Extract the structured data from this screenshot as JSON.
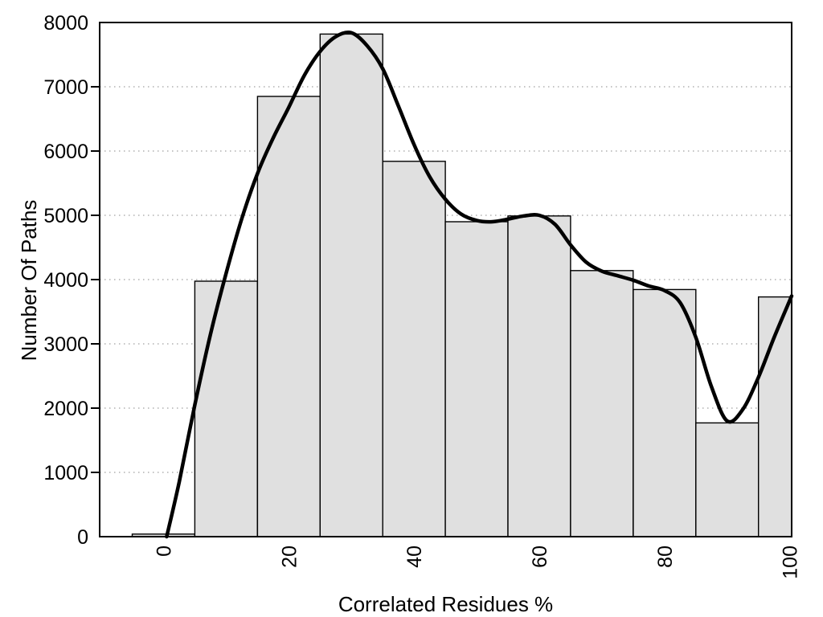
{
  "chart_data": {
    "type": "bar",
    "subtype": "histogram_with_smooth_curve",
    "title": "",
    "xlabel": "Correlated Residues %",
    "ylabel": "Number Of Paths",
    "xlim": [
      -10.2,
      100.3
    ],
    "ylim": [
      0,
      8000
    ],
    "x_ticks": [
      0,
      20,
      40,
      60,
      80,
      100
    ],
    "y_ticks": [
      0,
      1000,
      2000,
      3000,
      4000,
      5000,
      6000,
      7000,
      8000
    ],
    "grid_y": [
      1000,
      2000,
      3000,
      4000,
      5000,
      6000,
      7000
    ],
    "x_tick_rotation_deg": -90,
    "grid": "horizontal-dotted",
    "legend_position": "none",
    "bars": {
      "bin_width": 10,
      "centers": [
        0,
        10,
        20,
        30,
        40,
        50,
        60,
        70,
        80,
        90,
        100
      ],
      "values": [
        40,
        3975,
        6850,
        7820,
        5840,
        4900,
        4990,
        4140,
        3845,
        1770,
        3730
      ]
    },
    "smooth_curve": [
      [
        0.5,
        0
      ],
      [
        2.5,
        850
      ],
      [
        5,
        2050
      ],
      [
        7.5,
        3150
      ],
      [
        10,
        4100
      ],
      [
        12.5,
        4950
      ],
      [
        15,
        5650
      ],
      [
        17.5,
        6200
      ],
      [
        20,
        6680
      ],
      [
        22.5,
        7180
      ],
      [
        25,
        7550
      ],
      [
        27.5,
        7780
      ],
      [
        30,
        7840
      ],
      [
        32.5,
        7640
      ],
      [
        35,
        7280
      ],
      [
        37.5,
        6700
      ],
      [
        40,
        6100
      ],
      [
        42.5,
        5600
      ],
      [
        45,
        5250
      ],
      [
        47.5,
        5020
      ],
      [
        50,
        4920
      ],
      [
        52.5,
        4900
      ],
      [
        55,
        4940
      ],
      [
        57.5,
        4990
      ],
      [
        60,
        5000
      ],
      [
        62.5,
        4860
      ],
      [
        65,
        4540
      ],
      [
        67.5,
        4270
      ],
      [
        70,
        4130
      ],
      [
        72.5,
        4060
      ],
      [
        75,
        3990
      ],
      [
        77.5,
        3900
      ],
      [
        80,
        3830
      ],
      [
        82.5,
        3640
      ],
      [
        85,
        3100
      ],
      [
        87.5,
        2330
      ],
      [
        90,
        1800
      ],
      [
        92.5,
        1980
      ],
      [
        95,
        2480
      ],
      [
        97.5,
        3100
      ],
      [
        100.3,
        3745
      ]
    ],
    "colors": {
      "bar_fill": "#e0e0e0",
      "bar_stroke": "#000000",
      "curve": "#000000",
      "grid": "#b0b0b0",
      "axis": "#000000",
      "background": "#ffffff"
    }
  }
}
